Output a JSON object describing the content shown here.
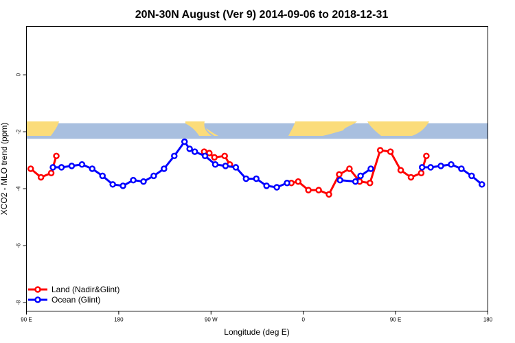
{
  "chart_data": {
    "type": "line",
    "title": "20N-30N August (Ver 9)   2014-09-06 to 2018-12-31",
    "xlabel": "Longitude (deg E)",
    "ylabel": "XCO2 - MLO trend (ppm)",
    "xlim": [
      -90,
      180
    ],
    "ylim": [
      -8.3,
      1.7
    ],
    "x_ticks": [
      {
        "value": -90,
        "label": "90 E"
      },
      {
        "value": -36,
        "label": "180"
      },
      {
        "value": 18,
        "label": "90 W"
      },
      {
        "value": 72,
        "label": "0"
      },
      {
        "value": 126,
        "label": "90 E"
      },
      {
        "value": 180,
        "label": "180"
      }
    ],
    "y_ticks": [
      {
        "value": 0,
        "label": "0"
      },
      {
        "value": -2,
        "label": "-2"
      },
      {
        "value": -4,
        "label": "-4"
      },
      {
        "value": -6,
        "label": "-6"
      },
      {
        "value": -8,
        "label": "-8"
      }
    ],
    "map_band": {
      "y_top": -1.7,
      "y_bottom": -2.25,
      "ocean_color": "#a8bfdf",
      "land_color": "#fbdc7a"
    },
    "series": [
      {
        "name": "Land (Nadir&Glint)",
        "color": "#ff0000",
        "segments": [
          [
            [
              -87.5,
              -3.3
            ],
            [
              -81.5,
              -3.6
            ],
            [
              -75.5,
              -3.45
            ],
            [
              -72.5,
              -2.85
            ]
          ],
          [
            [
              14,
              -2.7
            ],
            [
              17,
              -2.75
            ],
            [
              20,
              -2.9
            ],
            [
              26,
              -2.85
            ],
            [
              29,
              -3.15
            ]
          ],
          [
            [
              65,
              -3.8
            ],
            [
              69,
              -3.75
            ],
            [
              75,
              -4.05
            ],
            [
              81,
              -4.05
            ],
            [
              87,
              -4.2
            ],
            [
              93,
              -3.5
            ],
            [
              99,
              -3.3
            ],
            [
              105,
              -3.75
            ],
            [
              111,
              -3.8
            ],
            [
              117,
              -2.65
            ],
            [
              123,
              -2.7
            ],
            [
              129,
              -3.35
            ],
            [
              135,
              -3.6
            ],
            [
              141,
              -3.45
            ],
            [
              144,
              -2.85
            ]
          ]
        ]
      },
      {
        "name": "Ocean (Glint)",
        "color": "#0000ff",
        "segments": [
          [
            [
              -74.5,
              -3.25
            ],
            [
              -69.5,
              -3.25
            ],
            [
              -63.5,
              -3.2
            ],
            [
              -57.5,
              -3.15
            ],
            [
              -51.5,
              -3.3
            ],
            [
              -45.5,
              -3.55
            ],
            [
              -39.5,
              -3.85
            ],
            [
              -33.5,
              -3.9
            ],
            [
              -27.5,
              -3.7
            ],
            [
              -21.5,
              -3.75
            ],
            [
              -15.5,
              -3.55
            ],
            [
              -9.5,
              -3.3
            ],
            [
              -3.5,
              -2.85
            ],
            [
              2.5,
              -2.35
            ],
            [
              5.5,
              -2.6
            ],
            [
              8.5,
              -2.7
            ],
            [
              14.5,
              -2.85
            ],
            [
              20.5,
              -3.15
            ],
            [
              26.5,
              -3.2
            ],
            [
              32.5,
              -3.25
            ],
            [
              38.5,
              -3.65
            ],
            [
              44.5,
              -3.65
            ],
            [
              50.5,
              -3.9
            ],
            [
              56.5,
              -3.95
            ],
            [
              62.5,
              -3.8
            ]
          ],
          [
            [
              93.5,
              -3.7
            ],
            [
              102.5,
              -3.75
            ],
            [
              105.5,
              -3.55
            ],
            [
              111.5,
              -3.3
            ]
          ],
          [
            [
              141.5,
              -3.25
            ],
            [
              146.5,
              -3.25
            ],
            [
              152.5,
              -3.2
            ],
            [
              158.5,
              -3.15
            ],
            [
              164.5,
              -3.3
            ],
            [
              170.5,
              -3.55
            ],
            [
              176.5,
              -3.85
            ]
          ]
        ]
      }
    ],
    "legend": {
      "position": "bottom-left"
    }
  }
}
